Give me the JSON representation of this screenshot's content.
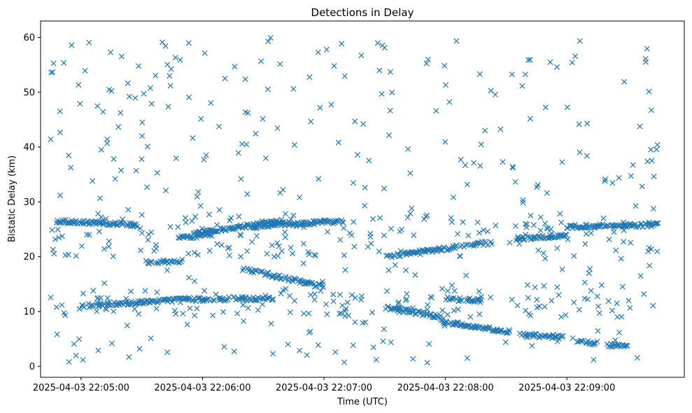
{
  "chart_data": {
    "type": "scatter",
    "title": "Detections in Delay",
    "xlabel": "Time (UTC)",
    "ylabel": "Bistatic Delay (km)",
    "marker": "x",
    "color": "#1f77b4",
    "grid": false,
    "legend": "none",
    "x_start": "2025-04-03 22:04:45",
    "x_end": "2025-04-03 22:09:45",
    "xlim": [
      "2025-04-03 22:04:40",
      "2025-04-03 22:09:58"
    ],
    "ylim": [
      -2,
      63
    ],
    "x_ticks": [
      "2025-04-03 22:05:00",
      "2025-04-03 22:06:00",
      "2025-04-03 22:07:00",
      "2025-04-03 22:08:00",
      "2025-04-03 22:09:00"
    ],
    "y_ticks": [
      "0",
      "10",
      "20",
      "30",
      "40",
      "50",
      "60"
    ],
    "tracks": [
      {
        "t": [
          "2025-04-03 22:04:48",
          "2025-04-03 22:05:28"
        ],
        "y": [
          26.5,
          25.8
        ]
      },
      {
        "t": [
          "2025-04-03 22:05:32",
          "2025-04-03 22:05:50"
        ],
        "y": [
          19.0,
          19.2
        ]
      },
      {
        "t": [
          "2025-04-03 22:05:48",
          "2025-04-03 22:06:05"
        ],
        "y": [
          23.5,
          24.0
        ]
      },
      {
        "t": [
          "2025-04-03 22:05:55",
          "2025-04-03 22:06:40"
        ],
        "y": [
          24.2,
          26.5
        ]
      },
      {
        "t": [
          "2025-04-03 22:06:20",
          "2025-04-03 22:07:10"
        ],
        "y": [
          25.5,
          26.5
        ]
      },
      {
        "t": [
          "2025-04-03 22:05:00",
          "2025-04-03 22:05:50"
        ],
        "y": [
          11.0,
          12.2
        ]
      },
      {
        "t": [
          "2025-04-03 22:05:50",
          "2025-04-03 22:06:35"
        ],
        "y": [
          12.2,
          12.4
        ]
      },
      {
        "t": [
          "2025-04-03 22:06:20",
          "2025-04-03 22:07:00"
        ],
        "y": [
          17.8,
          14.5
        ]
      },
      {
        "t": [
          "2025-04-03 22:07:30",
          "2025-04-03 22:08:20"
        ],
        "y": [
          20.0,
          22.5
        ]
      },
      {
        "t": [
          "2025-04-03 22:07:30",
          "2025-04-03 22:07:58"
        ],
        "y": [
          10.8,
          9.0
        ]
      },
      {
        "t": [
          "2025-04-03 22:07:58",
          "2025-04-03 22:08:32"
        ],
        "y": [
          8.2,
          6.3
        ]
      },
      {
        "t": [
          "2025-04-03 22:08:00",
          "2025-04-03 22:08:18"
        ],
        "y": [
          12.3,
          12.0
        ]
      },
      {
        "t": [
          "2025-04-03 22:08:35",
          "2025-04-03 22:08:58"
        ],
        "y": [
          5.8,
          5.3
        ]
      },
      {
        "t": [
          "2025-04-03 22:08:35",
          "2025-04-03 22:09:00"
        ],
        "y": [
          23.3,
          23.8
        ]
      },
      {
        "t": [
          "2025-04-03 22:09:00",
          "2025-04-03 22:09:45"
        ],
        "y": [
          25.5,
          25.8
        ]
      },
      {
        "t": [
          "2025-04-03 22:09:05",
          "2025-04-03 22:09:15"
        ],
        "y": [
          4.5,
          4.2
        ]
      },
      {
        "t": [
          "2025-04-03 22:09:20",
          "2025-04-03 22:09:30"
        ],
        "y": [
          3.8,
          3.8
        ]
      }
    ],
    "clutter": {
      "y_range": [
        0.5,
        60
      ],
      "points_approx": 600
    }
  }
}
